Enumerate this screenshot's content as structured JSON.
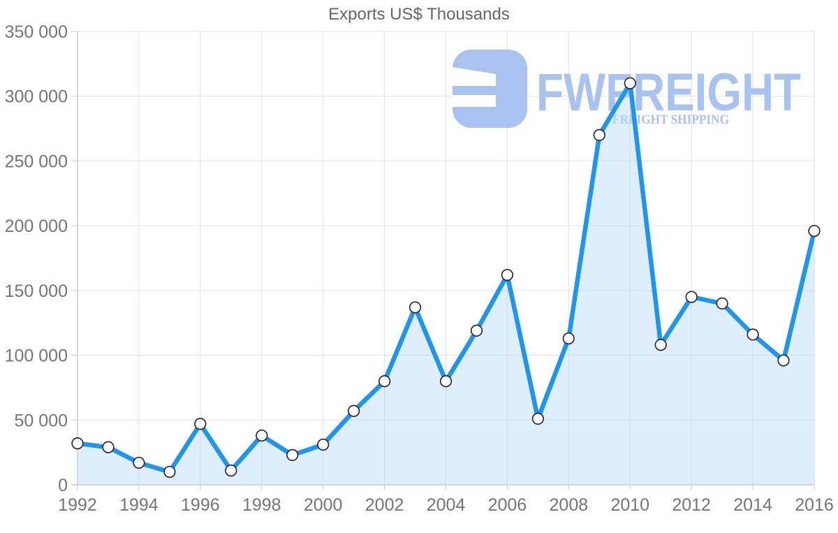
{
  "chart_data": {
    "type": "area",
    "title": "Exports US$ Thousands",
    "x": [
      1992,
      1993,
      1994,
      1995,
      1996,
      1997,
      1998,
      1999,
      2000,
      2001,
      2002,
      2003,
      2004,
      2005,
      2006,
      2007,
      2008,
      2009,
      2010,
      2011,
      2012,
      2013,
      2014,
      2015,
      2016
    ],
    "values": [
      32000,
      29000,
      17000,
      10000,
      47000,
      11000,
      38000,
      23000,
      31000,
      57000,
      80000,
      137000,
      80000,
      119000,
      162000,
      51000,
      113000,
      270000,
      310000,
      108000,
      145000,
      140000,
      116000,
      96000,
      196000
    ],
    "xlabel": "",
    "ylabel": "",
    "ylim": [
      0,
      350000
    ],
    "y_ticks": [
      0,
      50000,
      100000,
      150000,
      200000,
      250000,
      300000,
      350000
    ],
    "y_tick_labels": [
      "0",
      "50 000",
      "100 000",
      "150 000",
      "200 000",
      "250 000",
      "300 000",
      "350 000"
    ],
    "x_tick_labels": [
      "1992",
      "1994",
      "1996",
      "1998",
      "2000",
      "2002",
      "2004",
      "2006",
      "2008",
      "2010",
      "2012",
      "2014",
      "2016"
    ],
    "grid": true,
    "legend": "none",
    "colors": {
      "line": "#1e96f0",
      "area_fill": "#badbf8",
      "area_fill_opacity": 0.48,
      "marker_fill": "#ffffff",
      "marker_stroke": "#2b2b2b",
      "gridline": "#e2e2e2",
      "axis_line": "#c8c8c8",
      "tick_label": "#757575",
      "title": "#666666"
    }
  },
  "watermark": {
    "wordmark": "FWFREIGHT",
    "subtitle": "FREIGHT SHIPPING",
    "color": "#a9c3f0"
  }
}
